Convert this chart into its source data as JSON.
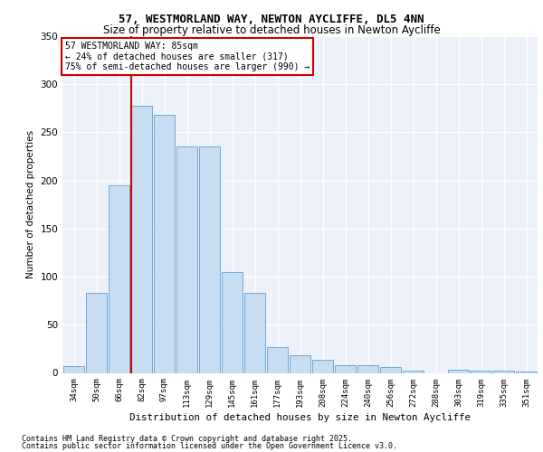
{
  "title1": "57, WESTMORLAND WAY, NEWTON AYCLIFFE, DL5 4NN",
  "title2": "Size of property relative to detached houses in Newton Aycliffe",
  "xlabel": "Distribution of detached houses by size in Newton Aycliffe",
  "ylabel": "Number of detached properties",
  "categories": [
    "34sqm",
    "50sqm",
    "66sqm",
    "82sqm",
    "97sqm",
    "113sqm",
    "129sqm",
    "145sqm",
    "161sqm",
    "177sqm",
    "193sqm",
    "208sqm",
    "224sqm",
    "240sqm",
    "256sqm",
    "272sqm",
    "288sqm",
    "303sqm",
    "319sqm",
    "335sqm",
    "351sqm"
  ],
  "values": [
    7,
    83,
    195,
    278,
    268,
    235,
    235,
    105,
    83,
    27,
    18,
    14,
    8,
    8,
    6,
    2,
    0,
    3,
    2,
    2,
    1
  ],
  "bar_color": "#c9ddf2",
  "bar_edge_color": "#6fa8d8",
  "vline_index": 3,
  "vline_color": "#cc0000",
  "annotation_text": "57 WESTMORLAND WAY: 85sqm\n← 24% of detached houses are smaller (317)\n75% of semi-detached houses are larger (990) →",
  "bg_color": "#edf2fa",
  "grid_color": "#ffffff",
  "footer1": "Contains HM Land Registry data © Crown copyright and database right 2025.",
  "footer2": "Contains public sector information licensed under the Open Government Licence v3.0.",
  "ylim": [
    0,
    350
  ],
  "yticks": [
    0,
    50,
    100,
    150,
    200,
    250,
    300,
    350
  ]
}
